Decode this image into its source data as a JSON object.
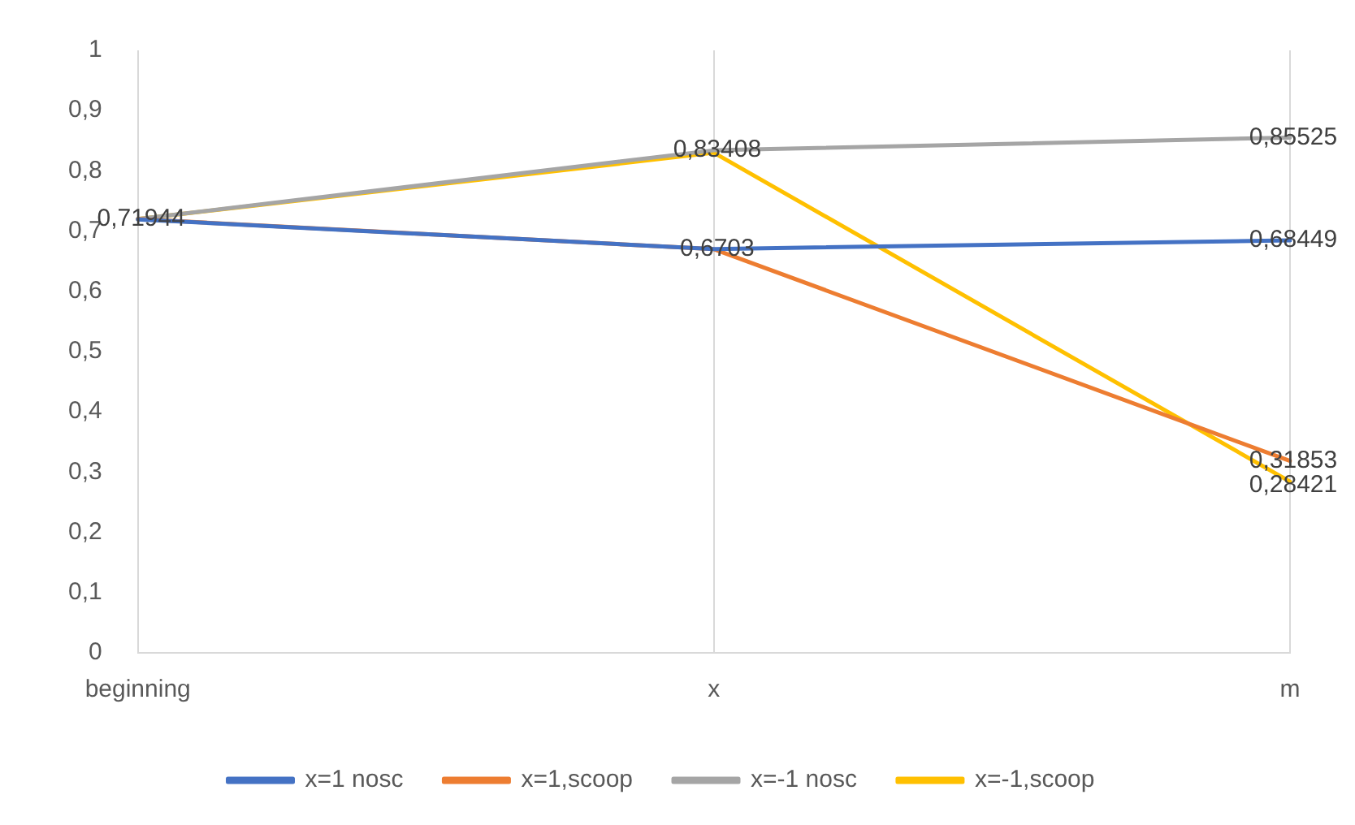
{
  "chart_data": {
    "type": "line",
    "categories": [
      "beginning",
      "x",
      "m"
    ],
    "series": [
      {
        "name": "x=1 nosc",
        "color": "#4472c4",
        "values": [
          0.71944,
          0.6703,
          0.68449
        ],
        "value_labels": [
          "0,71944",
          "0,6703",
          "0,68449"
        ]
      },
      {
        "name": "x=1,scoop",
        "color": "#ed7d31",
        "values": [
          0.72,
          0.67,
          0.31853
        ],
        "value_labels": [
          null,
          null,
          "0,31853"
        ]
      },
      {
        "name": "x=-1 nosc",
        "color": "#a5a5a5",
        "values": [
          0.72,
          0.83408,
          0.85525
        ],
        "value_labels": [
          null,
          "0,83408",
          "0,85525"
        ]
      },
      {
        "name": "x=-1,scoop",
        "color": "#ffc000",
        "values": [
          0.72,
          0.83,
          0.28421
        ],
        "value_labels": [
          null,
          null,
          "0,28421"
        ]
      }
    ],
    "ylim": [
      0,
      1
    ],
    "yticks": [
      {
        "value": 0,
        "label": "0"
      },
      {
        "value": 0.1,
        "label": "0,1"
      },
      {
        "value": 0.2,
        "label": "0,2"
      },
      {
        "value": 0.3,
        "label": "0,3"
      },
      {
        "value": 0.4,
        "label": "0,4"
      },
      {
        "value": 0.5,
        "label": "0,5"
      },
      {
        "value": 0.6,
        "label": "0,6"
      },
      {
        "value": 0.7,
        "label": "0,7"
      },
      {
        "value": 0.8,
        "label": "0,8"
      },
      {
        "value": 0.9,
        "label": "0,9"
      },
      {
        "value": 1,
        "label": "1"
      }
    ],
    "grid": "x",
    "legend": "bottom",
    "marker": "none",
    "line_style": "solid"
  }
}
